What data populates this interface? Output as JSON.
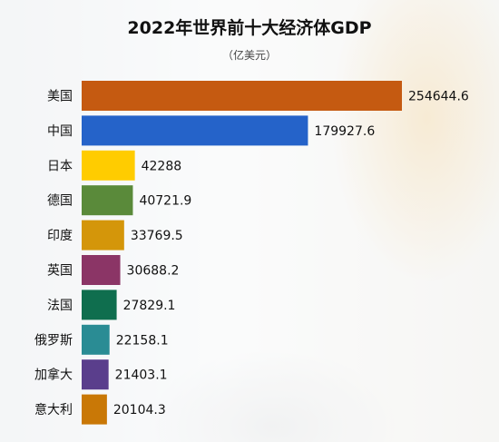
{
  "title": "2022年世界前十大经济体GDP",
  "subtitle": "（亿美元）",
  "chart_data": {
    "type": "bar",
    "orientation": "horizontal",
    "title": "2022年世界前十大经济体GDP",
    "subtitle": "（亿美元）",
    "categories": [
      "美国",
      "中国",
      "日本",
      "德国",
      "印度",
      "英国",
      "法国",
      "俄罗斯",
      "加拿大",
      "意大利"
    ],
    "values": [
      254644.6,
      179927.6,
      42288,
      40721.9,
      33769.5,
      30688.2,
      27829.1,
      22158.1,
      21403.1,
      20104.3
    ],
    "value_labels": [
      "254644.6",
      "179927.6",
      "42288",
      "40721.9",
      "33769.5",
      "30688.2",
      "27829.1",
      "22158.1",
      "21403.1",
      "20104.3"
    ],
    "colors": [
      "#c55a11",
      "#2563c9",
      "#ffcc00",
      "#5a8a3a",
      "#d4960a",
      "#8b3566",
      "#0f6e4e",
      "#2a8c94",
      "#5a3e8c",
      "#c97806"
    ],
    "xlim": [
      0,
      254644.6
    ],
    "grid": false,
    "legend": "none",
    "xlabel": "",
    "ylabel": ""
  }
}
